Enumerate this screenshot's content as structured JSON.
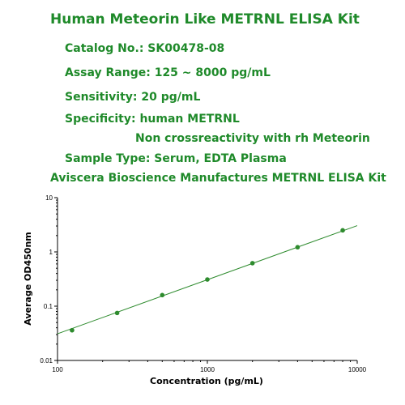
{
  "header": {
    "title": "Human Meteorin Like METRNL ELISA Kit",
    "catalog": "Catalog No.: SK00478-08",
    "assay_range": "Assay Range: 125 ~ 8000 pg/mL",
    "sensitivity": "Sensitivity: 20 pg/mL",
    "specificity": "Specificity: human METRNL",
    "non_cross": "Non crossreactivity with rh Meteorin",
    "sample_type": "Sample Type: Serum, EDTA Plasma",
    "manufacturer": "Aviscera Bioscience  Manufactures METRNL ELISA Kit"
  },
  "colors": {
    "text": "#1f8a2a",
    "series": "#2e8b2e",
    "axis": "#000000"
  },
  "chart_data": {
    "type": "scatter",
    "xlabel": "Concentration (pg/mL)",
    "ylabel": "Average OD450nm",
    "x_scale": "log",
    "y_scale": "log",
    "xlim": [
      100,
      10000
    ],
    "ylim": [
      0.01,
      10
    ],
    "x_ticks": [
      "100",
      "1000",
      "10000"
    ],
    "y_ticks": [
      "0.01",
      "0.1",
      "1",
      "10"
    ],
    "grid": false,
    "series": [
      {
        "x": [
          125,
          250,
          500,
          1000,
          2000,
          4000,
          8000
        ],
        "y": [
          0.036,
          0.075,
          0.16,
          0.31,
          0.62,
          1.22,
          2.5
        ]
      }
    ],
    "fit_line": {
      "x": [
        100,
        10000
      ],
      "y": [
        0.031,
        3.05
      ]
    }
  }
}
